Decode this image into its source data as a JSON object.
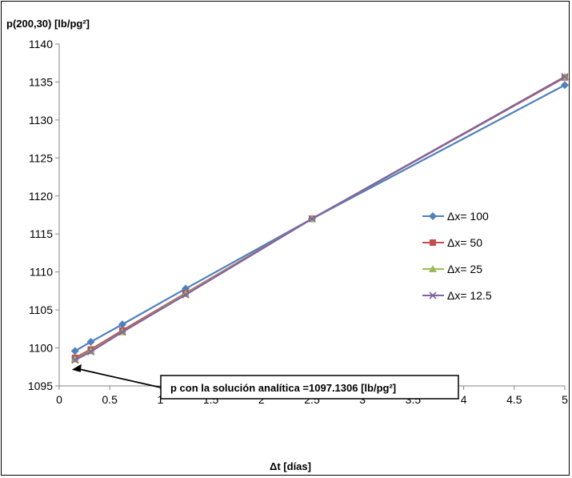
{
  "chart_data": {
    "type": "line",
    "title": "",
    "ylabel": "p(200,30) [lb/pg²]",
    "xlabel": "Δt [días]",
    "xlim": [
      0,
      5
    ],
    "ylim": [
      1095,
      1140
    ],
    "xticks": [
      "0",
      "0.5",
      "1",
      "1.5",
      "2",
      "2.5",
      "3",
      "3.5",
      "4",
      "4.5",
      "5"
    ],
    "yticks": [
      "1095",
      "1100",
      "1105",
      "1110",
      "1115",
      "1120",
      "1125",
      "1130",
      "1135",
      "1140"
    ],
    "grid": false,
    "legend_position": "right",
    "series": [
      {
        "name": "Δx= 100",
        "color": "#4F81BD",
        "marker": "diamond",
        "x": [
          0.15625,
          0.3125,
          0.625,
          1.25,
          2.5,
          5
        ],
        "y": [
          1099.6,
          1100.8,
          1103.1,
          1107.8,
          1117.0,
          1134.6
        ]
      },
      {
        "name": "Δx= 50",
        "color": "#C0504D",
        "marker": "square",
        "x": [
          0.15625,
          0.3125,
          0.625,
          1.25,
          2.5,
          5
        ],
        "y": [
          1098.7,
          1099.8,
          1102.3,
          1107.2,
          1117.0,
          1135.6
        ]
      },
      {
        "name": "Δx= 25",
        "color": "#9BBB59",
        "marker": "triangle",
        "x": [
          0.15625,
          0.3125,
          0.625,
          1.25,
          2.5,
          5
        ],
        "y": [
          1098.5,
          1099.6,
          1102.1,
          1107.1,
          1117.0,
          1135.7
        ]
      },
      {
        "name": "Δx= 12.5",
        "color": "#8064A2",
        "marker": "x",
        "x": [
          0.15625,
          0.3125,
          0.625,
          1.25,
          2.5,
          5
        ],
        "y": [
          1098.4,
          1099.5,
          1102.1,
          1107.0,
          1117.0,
          1135.7
        ]
      }
    ],
    "annotation": {
      "text": "p con la solución analítica =1097.1306 [lb/pg²]",
      "x": 0.15625,
      "y": 1097.1306
    }
  }
}
